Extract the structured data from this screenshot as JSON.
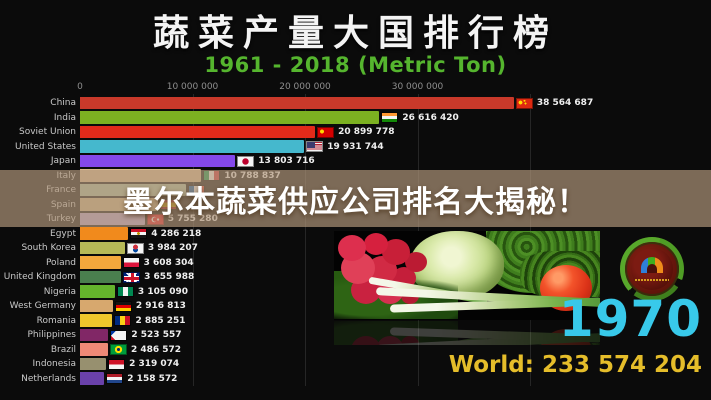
{
  "title": "蔬菜产量大国排行榜",
  "subtitle": "1961 - 2018 (Metric Ton)",
  "overlay": {
    "text": "墨尔本蔬菜供应公司排名大揭秘！"
  },
  "footer": {
    "year": "1970",
    "world_label": "World: 233 574 204"
  },
  "colors": {
    "subtitle_green": "#55b52e",
    "year_cyan": "#38c9ea",
    "world_gold": "#e5bd2a",
    "banner_tan": "rgba(178,152,124,0.68)",
    "background": "#0b0b0b"
  },
  "chart_data": {
    "type": "bar",
    "orientation": "horizontal",
    "title": "蔬菜产量大国排行榜",
    "subtitle": "1961 - 2018 (Metric Ton)",
    "unit": "Metric Ton",
    "year_shown": "1970",
    "world_total": 233574204,
    "xlim": [
      0,
      40000000
    ],
    "x_ticks": [
      {
        "label": "0",
        "value": 0
      },
      {
        "label": "10 000 000",
        "value": 10000000
      },
      {
        "label": "20 000 000",
        "value": 20000000
      },
      {
        "label": "30 000 000",
        "value": 30000000
      }
    ],
    "grid_values": [
      10000000,
      20000000,
      30000000,
      40000000
    ],
    "legend": "none",
    "rows": [
      {
        "country": "China",
        "value": 38564687,
        "display": "38 564 687",
        "color": "#c9392a",
        "flag": "cn",
        "flag_name": "china-flag",
        "obscured": false
      },
      {
        "country": "India",
        "value": 26616420,
        "display": "26 616 420",
        "color": "#7cb121",
        "flag": "in",
        "flag_name": "india-flag",
        "obscured": false
      },
      {
        "country": "Soviet Union",
        "value": 20899778,
        "display": "20 899 778",
        "color": "#e22a1a",
        "flag": "su",
        "flag_name": "soviet-union-flag",
        "obscured": false
      },
      {
        "country": "United States",
        "value": 19931744,
        "display": "19 931 744",
        "color": "#45b8cd",
        "flag": "us",
        "flag_name": "united-states-flag",
        "obscured": false
      },
      {
        "country": "Japan",
        "value": 13803716,
        "display": "13 803 716",
        "color": "#8448ea",
        "flag": "jp",
        "flag_name": "japan-flag",
        "obscured": false
      },
      {
        "country": "Italy",
        "value": 10788837,
        "display": "10 788 837",
        "color": "#d8b98c",
        "flag": "it",
        "flag_name": "italy-flag",
        "obscured": false
      },
      {
        "country": "France",
        "value": 9400000,
        "display": "",
        "color": "#a9bf9e",
        "flag": "fr",
        "flag_name": "france-flag",
        "obscured": true
      },
      {
        "country": "Spain",
        "value": 6900000,
        "display": "",
        "color": "#cbb183",
        "flag": "es",
        "flag_name": "spain-flag",
        "obscured": true
      },
      {
        "country": "Turkey",
        "value": 5755280,
        "display": "5 755 280",
        "color": "#b7a3cf",
        "flag": "tr",
        "flag_name": "turkey-flag",
        "obscured": false
      },
      {
        "country": "Egypt",
        "value": 4286218,
        "display": "4 286 218",
        "color": "#f18a1c",
        "flag": "eg",
        "flag_name": "egypt-flag",
        "obscured": false
      },
      {
        "country": "South Korea",
        "value": 3984207,
        "display": "3 984 207",
        "color": "#b6b957",
        "flag": "kr",
        "flag_name": "south-korea-flag",
        "obscured": false
      },
      {
        "country": "Poland",
        "value": 3608304,
        "display": "3 608 304",
        "color": "#f3a83c",
        "flag": "pl",
        "flag_name": "poland-flag",
        "obscured": false
      },
      {
        "country": "United Kingdom",
        "value": 3655988,
        "display": "3 655 988",
        "color": "#4a7f4e",
        "flag": "gb",
        "flag_name": "united-kingdom-flag",
        "obscured": false
      },
      {
        "country": "Nigeria",
        "value": 3105090,
        "display": "3 105 090",
        "color": "#64b42c",
        "flag": "ng",
        "flag_name": "nigeria-flag",
        "obscured": false
      },
      {
        "country": "West Germany",
        "value": 2916813,
        "display": "2 916 813",
        "color": "#d7a86e",
        "flag": "de",
        "flag_name": "west-germany-flag",
        "obscured": false
      },
      {
        "country": "Romania",
        "value": 2885251,
        "display": "2 885 251",
        "color": "#efc72c",
        "flag": "ro",
        "flag_name": "romania-flag",
        "obscured": false
      },
      {
        "country": "Philippines",
        "value": 2523557,
        "display": "2 523 557",
        "color": "#812766",
        "flag": "ph",
        "flag_name": "philippines-flag",
        "obscured": false
      },
      {
        "country": "Brazil",
        "value": 2486572,
        "display": "2 486 572",
        "color": "#ee8977",
        "flag": "br",
        "flag_name": "brazil-flag",
        "obscured": false
      },
      {
        "country": "Indonesia",
        "value": 2319074,
        "display": "2 319 074",
        "color": "#97906f",
        "flag": "id",
        "flag_name": "indonesia-flag",
        "obscured": false
      },
      {
        "country": "Netherlands",
        "value": 2158572,
        "display": "2 158 572",
        "color": "#6a41aa",
        "flag": "nl",
        "flag_name": "netherlands-flag",
        "obscured": false
      }
    ]
  }
}
